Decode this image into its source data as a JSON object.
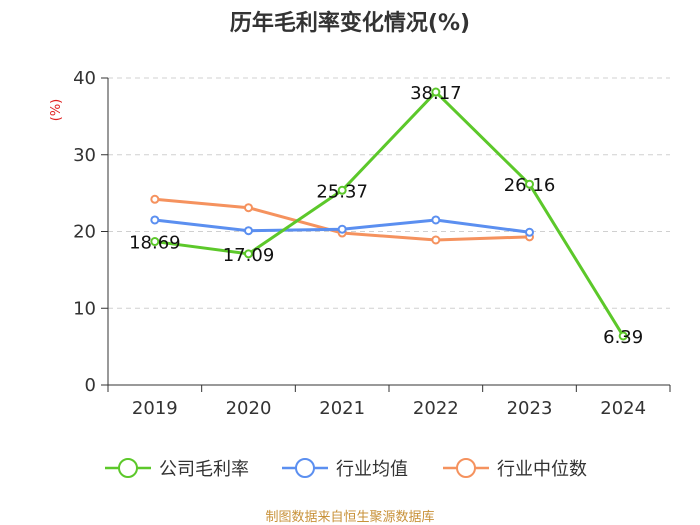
{
  "chart_data": {
    "type": "line",
    "title": "历年毛利率变化情况(%)",
    "ylabel": "(%)",
    "xlabel": "",
    "ylim": [
      0,
      40
    ],
    "yticks": [
      0,
      10,
      20,
      30,
      40
    ],
    "categories": [
      "2019",
      "2020",
      "2021",
      "2022",
      "2023",
      "2024"
    ],
    "grid": true,
    "legend_position": "bottom",
    "series": [
      {
        "name": "公司毛利率",
        "color": "#5cc82a",
        "values": [
          18.69,
          17.09,
          25.37,
          38.17,
          26.16,
          6.39
        ],
        "labels": [
          "18.69",
          "17.09",
          "25.37",
          "38.17",
          "26.16",
          "6.39"
        ]
      },
      {
        "name": "行业均值",
        "color": "#5b8ff0",
        "values": [
          21.5,
          20.1,
          20.3,
          21.5,
          19.9,
          null
        ]
      },
      {
        "name": "行业中位数",
        "color": "#f5925e",
        "values": [
          24.2,
          23.1,
          19.8,
          18.9,
          19.3,
          null
        ]
      }
    ]
  },
  "source_note": "制图数据来自恒生聚源数据库"
}
